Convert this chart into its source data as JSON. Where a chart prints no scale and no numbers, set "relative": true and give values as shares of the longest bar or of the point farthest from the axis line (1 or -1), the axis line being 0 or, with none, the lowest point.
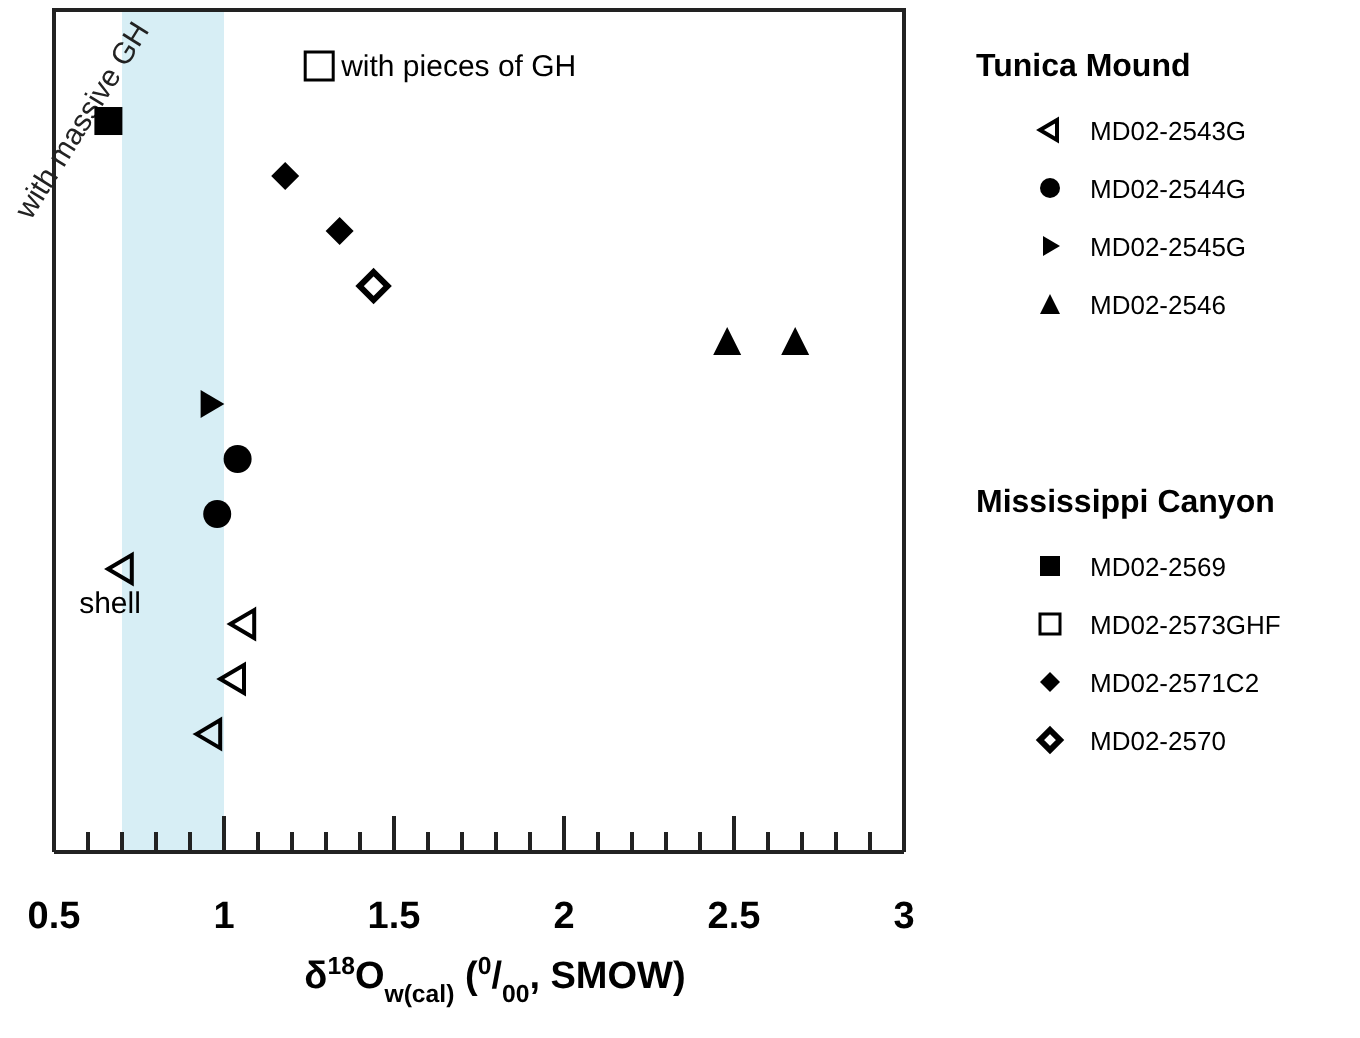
{
  "chart_data": {
    "type": "scatter",
    "relative": true,
    "xlabel": "δ$^{18}$O$_{w(cal)}$ ($^{0}$/$_{00}$, SMOW)",
    "xlim": [
      0.5,
      3
    ],
    "xticks": [
      0.5,
      {
        "value": 0.6,
        "label": null
      },
      {
        "value": 0.7,
        "label": null
      },
      {
        "value": 0.8,
        "label": null
      },
      {
        "value": 0.9,
        "label": null
      },
      1,
      {
        "value": 1.1,
        "label": null
      },
      {
        "value": 1.2,
        "label": null
      },
      {
        "value": 1.3,
        "label": null
      },
      {
        "value": 1.4,
        "label": null
      },
      1.5,
      {
        "value": 1.6,
        "label": null
      },
      {
        "value": 1.7,
        "label": null
      },
      {
        "value": 1.8,
        "label": null
      },
      {
        "value": 1.9,
        "label": null
      },
      2,
      {
        "value": 2.1,
        "label": null
      },
      {
        "value": 2.2,
        "label": null
      },
      {
        "value": 2.3,
        "label": null
      },
      {
        "value": 2.4,
        "label": null
      },
      2.5,
      {
        "value": 2.6,
        "label": null
      },
      {
        "value": 2.7,
        "label": null
      },
      {
        "value": 2.8,
        "label": null
      },
      {
        "value": 2.9,
        "label": null
      },
      3
    ],
    "legend_title": [
      "Tunica Mound",
      "Mississippi Canyon"
    ],
    "legend": "right",
    "series": [
      {
        "name": "MD02-2543G",
        "marker": "triangle-left-open",
        "color": "#000000",
        "x": [
          0.7,
          1.06,
          1.03,
          0.96
        ],
        "values": [
          0.36,
          0.29,
          0.22,
          0.15
        ]
      },
      {
        "name": "MD02-2544G",
        "marker": "circle",
        "color": "#000000",
        "x": [
          1.04,
          0.98
        ],
        "values": [
          0.5,
          0.43
        ]
      },
      {
        "name": "MD02-2545G",
        "marker": "triangle-right",
        "color": "#000000",
        "x": [
          0.96
        ],
        "values": [
          0.57
        ]
      },
      {
        "name": "MD02-2546",
        "marker": "triangle",
        "color": "#000000",
        "x": [
          2.48,
          2.68
        ],
        "values": [
          0.65,
          0.65
        ]
      },
      {
        "name": "MD02-2569",
        "marker": "square",
        "color": "#000000",
        "x": [
          0.66
        ],
        "values": [
          0.93
        ]
      },
      {
        "name": "MD02-2573GHF",
        "marker": "square-open",
        "color": "#000000",
        "x": [
          1.28
        ],
        "values": [
          1
        ]
      },
      {
        "name": "MD02-2571C2",
        "marker": "diamond",
        "color": "#000000",
        "x": [
          1.18,
          1.34
        ],
        "values": [
          0.86,
          0.79
        ]
      },
      {
        "name": "MD02-2570",
        "marker": "diamond-open",
        "color": "#000000",
        "x": [
          1.44
        ],
        "values": [
          0.72
        ]
      }
    ],
    "bands": [
      {
        "axis": "x",
        "from": 0.7,
        "to": 1,
        "label": "with massive GH",
        "color": "#d7eef5"
      }
    ],
    "annotations": [
      {
        "text": "with pieces of GH",
        "x": 1.28,
        "y": 1
      },
      {
        "text": "shell",
        "x": 0.7,
        "y": 0.36
      }
    ]
  }
}
